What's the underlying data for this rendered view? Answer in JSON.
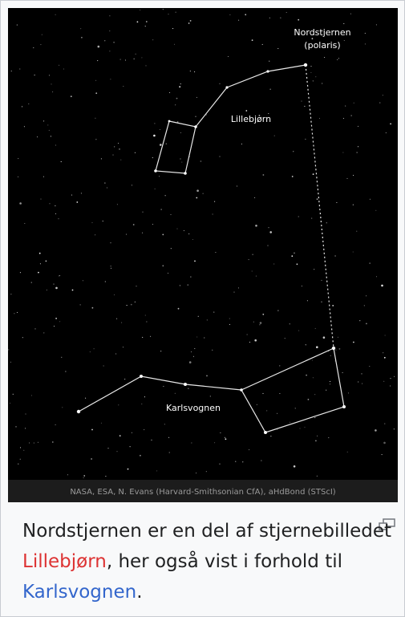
{
  "image": {
    "labels": {
      "polaris_name": "Nordstjernen",
      "polaris_alt": "(polaris)",
      "little_dipper": "Lillebjørn",
      "big_dipper": "Karlsvognen"
    },
    "credit": "NASA, ESA, N. Evans (Harvard-Smithsonian CfA), aHdBond (STScI)"
  },
  "caption": {
    "text_1": "Nordstjernen er en del af stjernebilledet ",
    "link_1": "Lillebjørn",
    "text_2": ", her også vist i forhold til ",
    "link_2": "Karlsvognen",
    "text_3": "."
  }
}
